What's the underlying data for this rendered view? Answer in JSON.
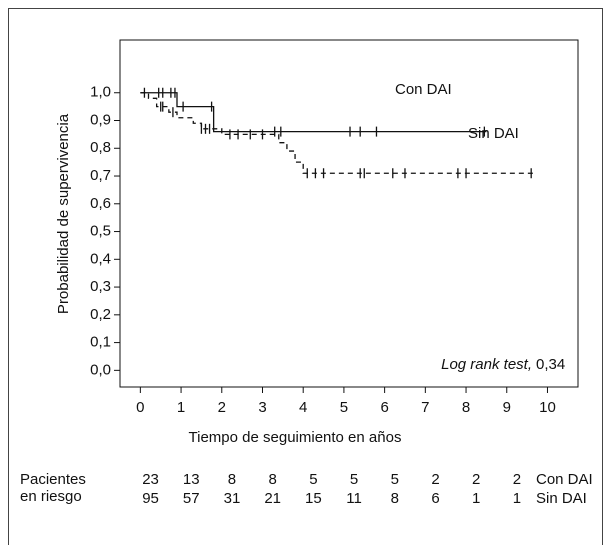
{
  "chart_data": {
    "type": "survival",
    "x_label": "Tiempo de seguimiento en años",
    "y_label": "Probabilidad de supervivencia",
    "xlim": [
      -0.5,
      10.75
    ],
    "ylim": [
      -0.06,
      1.19
    ],
    "xticks": [
      0,
      1,
      2,
      3,
      4,
      5,
      6,
      7,
      8,
      9,
      10
    ],
    "yticks": [
      {
        "value": 0,
        "label": "0,0"
      },
      {
        "value": 0.1,
        "label": "0,1"
      },
      {
        "value": 0.2,
        "label": "0,2"
      },
      {
        "value": 0.3,
        "label": "0,3"
      },
      {
        "value": 0.4,
        "label": "0,4"
      },
      {
        "value": 0.5,
        "label": "0,5"
      },
      {
        "value": 0.6,
        "label": "0,6"
      },
      {
        "value": 0.7,
        "label": "0,7"
      },
      {
        "value": 0.8,
        "label": "0,8"
      },
      {
        "value": 0.9,
        "label": "0,9"
      },
      {
        "value": 1,
        "label": "1,0"
      }
    ],
    "annotation": {
      "italic": "Log rank test,",
      "text": "0,34"
    },
    "series": [
      {
        "name": "Con DAI",
        "color": "#111111",
        "dashed": false,
        "x": [
          0,
          0.9,
          0.9,
          1.8,
          1.8,
          8.5
        ],
        "y": [
          1,
          1,
          0.95,
          0.95,
          0.86,
          0.86
        ],
        "censor_x": [
          0.1,
          0.45,
          0.55,
          0.75,
          0.85,
          1.05,
          1.75,
          3.3,
          3.45,
          5.15,
          5.4,
          5.8,
          8.45
        ],
        "censor_y": [
          1,
          1,
          1,
          1,
          1,
          0.95,
          0.95,
          0.86,
          0.86,
          0.86,
          0.86,
          0.86,
          0.86
        ],
        "at_risk": [
          23,
          13,
          8,
          8,
          5,
          5,
          5,
          2,
          2,
          2
        ]
      },
      {
        "name": "Sin DAI",
        "color": "#111111",
        "dashed": true,
        "x": [
          0,
          0.2,
          0.2,
          0.4,
          0.4,
          0.7,
          0.7,
          0.9,
          0.9,
          1.3,
          1.3,
          1.5,
          1.5,
          2.0,
          2.0,
          3.4,
          3.4,
          3.6,
          3.6,
          3.8,
          3.8,
          4.0,
          4.0,
          9.7
        ],
        "y": [
          1,
          1,
          0.98,
          0.98,
          0.95,
          0.95,
          0.93,
          0.93,
          0.91,
          0.91,
          0.89,
          0.89,
          0.87,
          0.87,
          0.85,
          0.85,
          0.82,
          0.82,
          0.79,
          0.79,
          0.75,
          0.75,
          0.71,
          0.71
        ],
        "censor_x": [
          0.5,
          0.55,
          0.8,
          1.5,
          1.6,
          1.7,
          2.2,
          2.4,
          2.7,
          3.0,
          4.1,
          4.3,
          4.5,
          5.4,
          5.5,
          6.2,
          6.5,
          7.8,
          8.0,
          9.6
        ],
        "censor_y": [
          0.95,
          0.95,
          0.93,
          0.87,
          0.87,
          0.87,
          0.85,
          0.85,
          0.85,
          0.85,
          0.71,
          0.71,
          0.71,
          0.71,
          0.71,
          0.71,
          0.71,
          0.71,
          0.71,
          0.71
        ],
        "at_risk": [
          95,
          57,
          31,
          21,
          15,
          11,
          8,
          6,
          1,
          1
        ]
      }
    ],
    "at_risk_label": [
      "Pacientes",
      "en riesgo"
    ]
  }
}
